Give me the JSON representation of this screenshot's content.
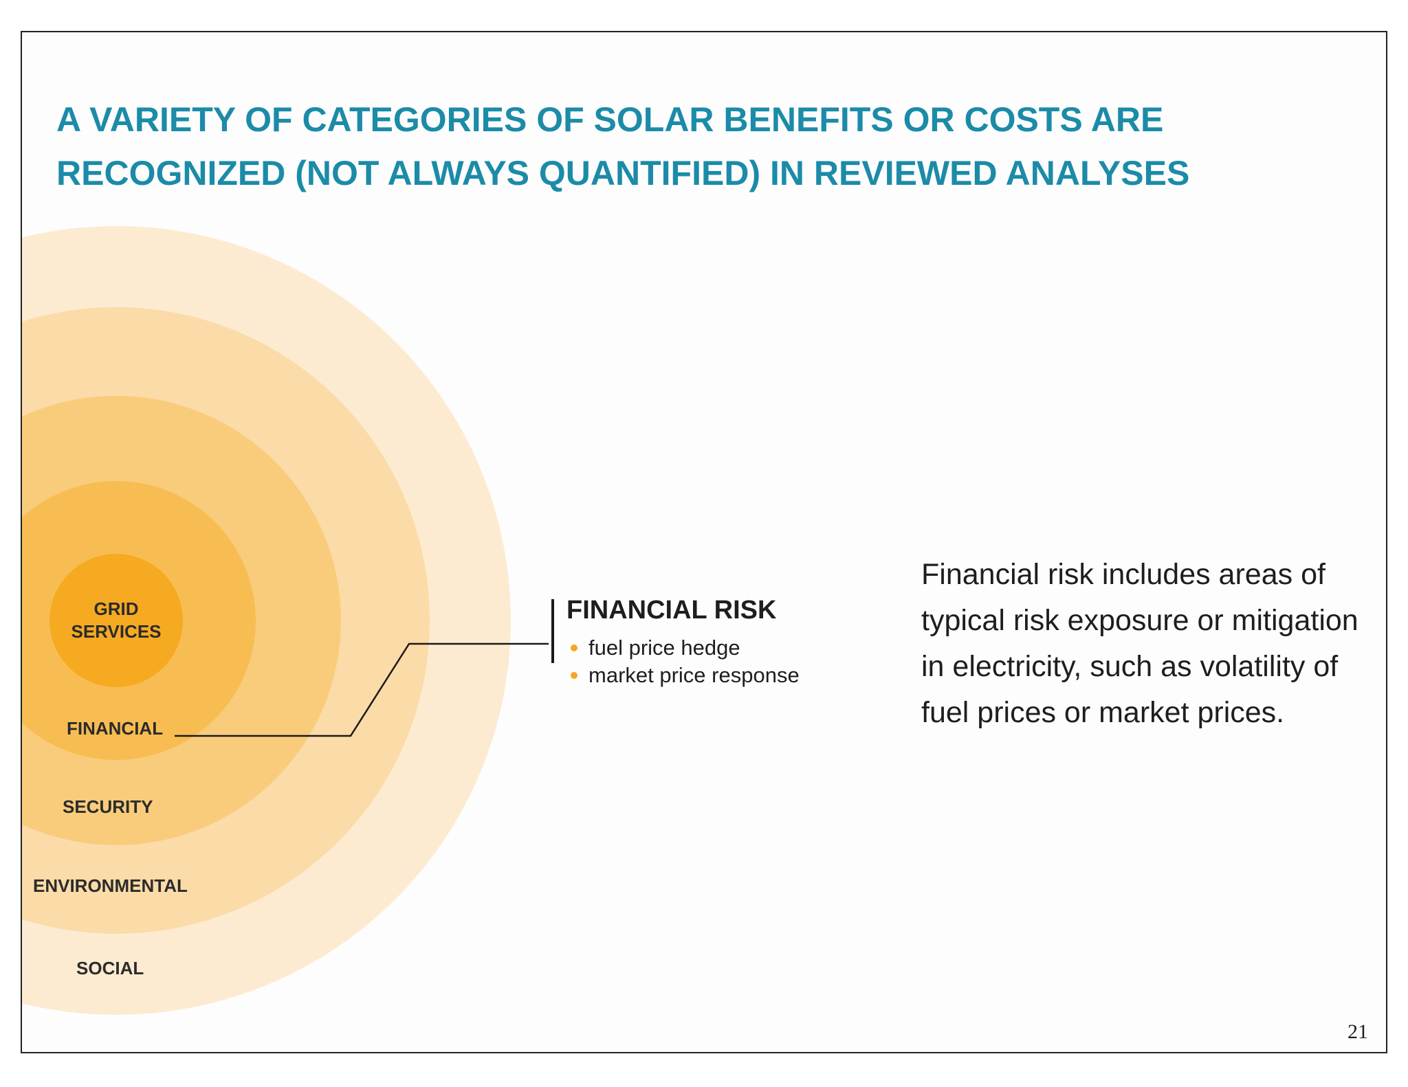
{
  "slide": {
    "title_lines": [
      "A VARIETY OF CATEGORIES OF SOLAR BENEFITS OR COSTS ARE",
      "RECOGNIZED (NOT ALWAYS QUANTIFIED) IN REVIEWED ANALYSES"
    ],
    "page_number": "21"
  },
  "diagram": {
    "rings": [
      {
        "label": "SOCIAL",
        "color": "#fdebd1"
      },
      {
        "label": "ENVIRONMENTAL",
        "color": "#fbdba7"
      },
      {
        "label": "SECURITY",
        "color": "#f9cc7c"
      },
      {
        "label": "FINANCIAL",
        "color": "#f8bd52"
      },
      {
        "label_lines": [
          "GRID",
          "SERVICES"
        ],
        "color": "#f6aa22"
      }
    ],
    "highlighted_ring": "FINANCIAL",
    "connector_color": "#1a1a1a"
  },
  "callout": {
    "heading": "FINANCIAL RISK",
    "bullet_color": "#f5a623",
    "items": [
      "fuel price hedge",
      "market price response"
    ]
  },
  "description": "Financial risk includes areas of typical risk exposure or mitigation in electricity, such as volatility of fuel prices or market prices.",
  "colors": {
    "title": "#1b8ba8",
    "text": "#1e1e1e",
    "border": "#222222"
  }
}
